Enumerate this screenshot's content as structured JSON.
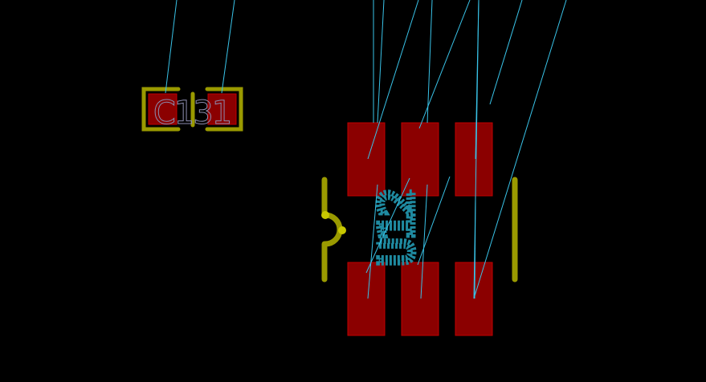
{
  "colors": {
    "background": "#000000",
    "pad_fill": "#8b0000",
    "pad_edge": "#c00000",
    "silkscreen": "#9a9a00",
    "silkscreen_marker": "#c8c800",
    "ratsnest": "#39c3e8",
    "ref_text_c": "#8d8db0",
    "ref_text_u": "#1f8aa0"
  },
  "components": {
    "c131": {
      "reference": "C131"
    },
    "u12": {
      "reference": "U12"
    }
  }
}
